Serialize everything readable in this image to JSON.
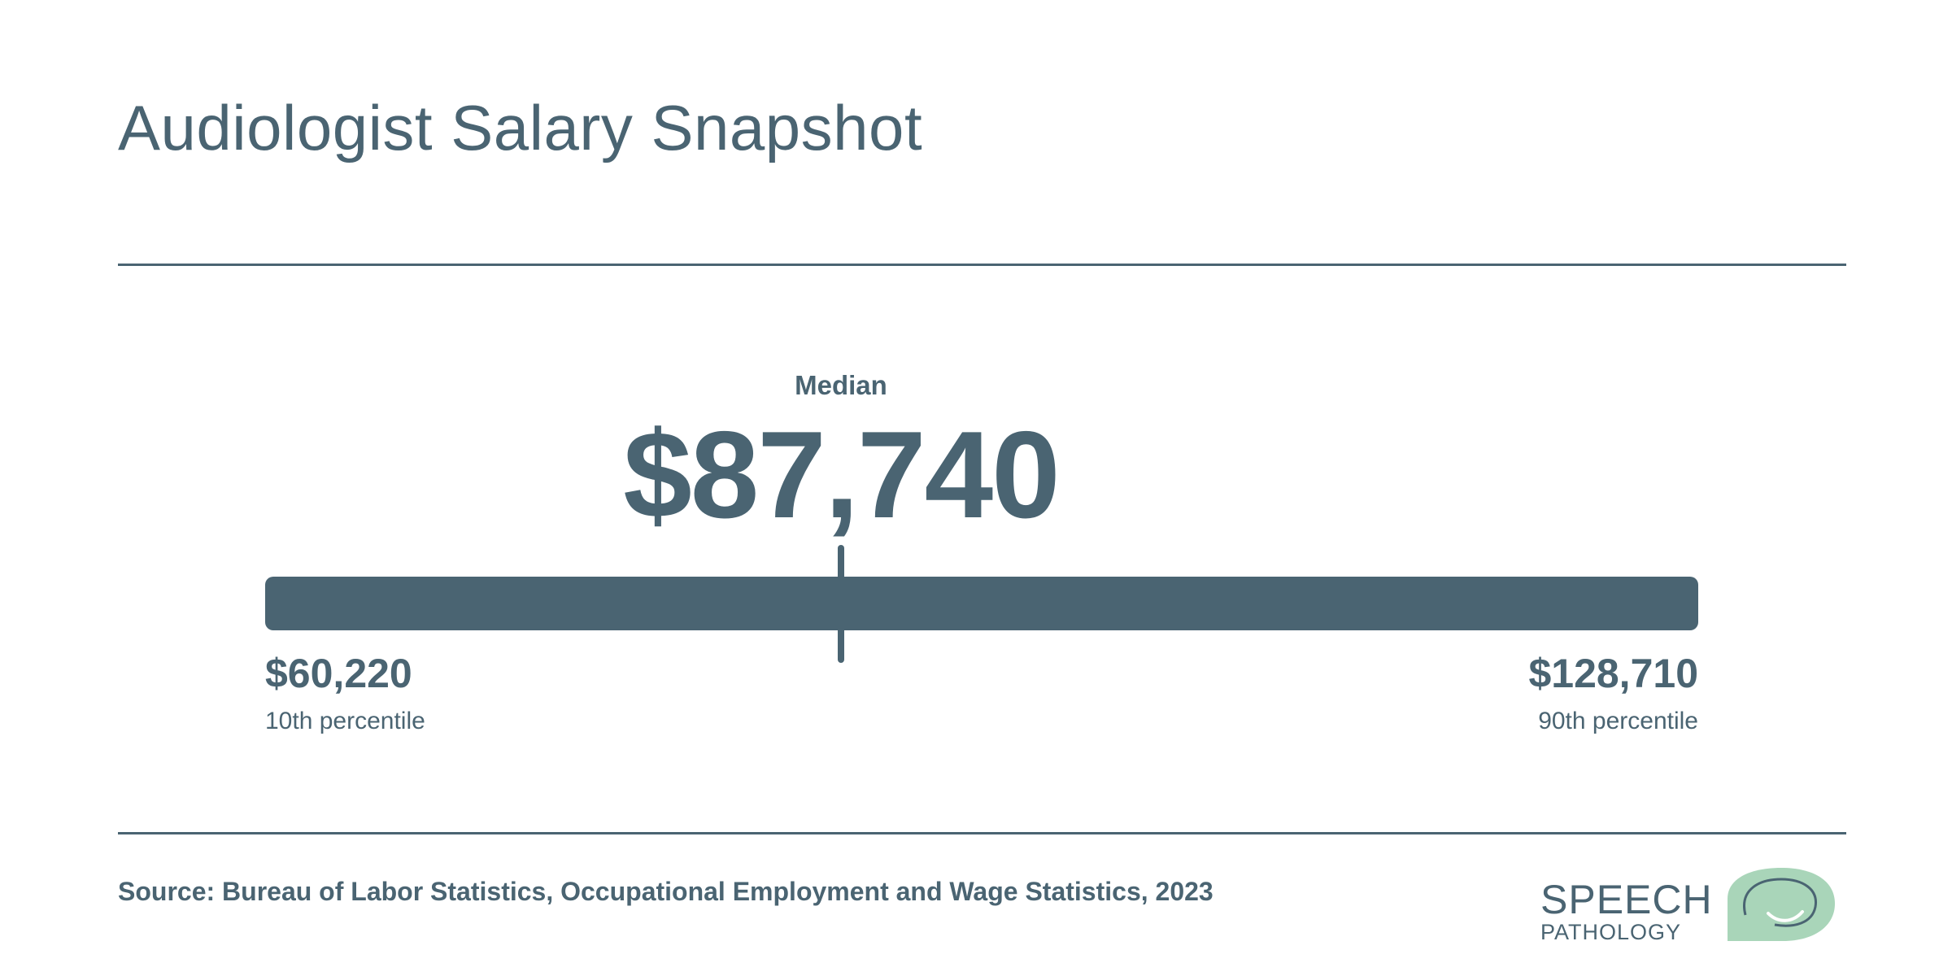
{
  "title": "Audiologist Salary Snapshot",
  "colors": {
    "primary": "#4a6472",
    "logo_green": "#a9d5b9",
    "background": "#ffffff"
  },
  "chart_data": {
    "type": "range",
    "min": {
      "value": 60220,
      "display": "$60,220",
      "label": "10th percentile"
    },
    "median": {
      "value": 87740,
      "display": "$87,740",
      "label": "Median"
    },
    "max": {
      "value": 128710,
      "display": "$128,710",
      "label": "90th percentile"
    }
  },
  "source": "Source: Bureau of Labor Statistics, Occupational Employment and Wage Statistics, 2023",
  "logo": {
    "line1": "SPEECH",
    "line2": "PATHOLOGY",
    "icon": "speech-bubble-smile-icon"
  }
}
